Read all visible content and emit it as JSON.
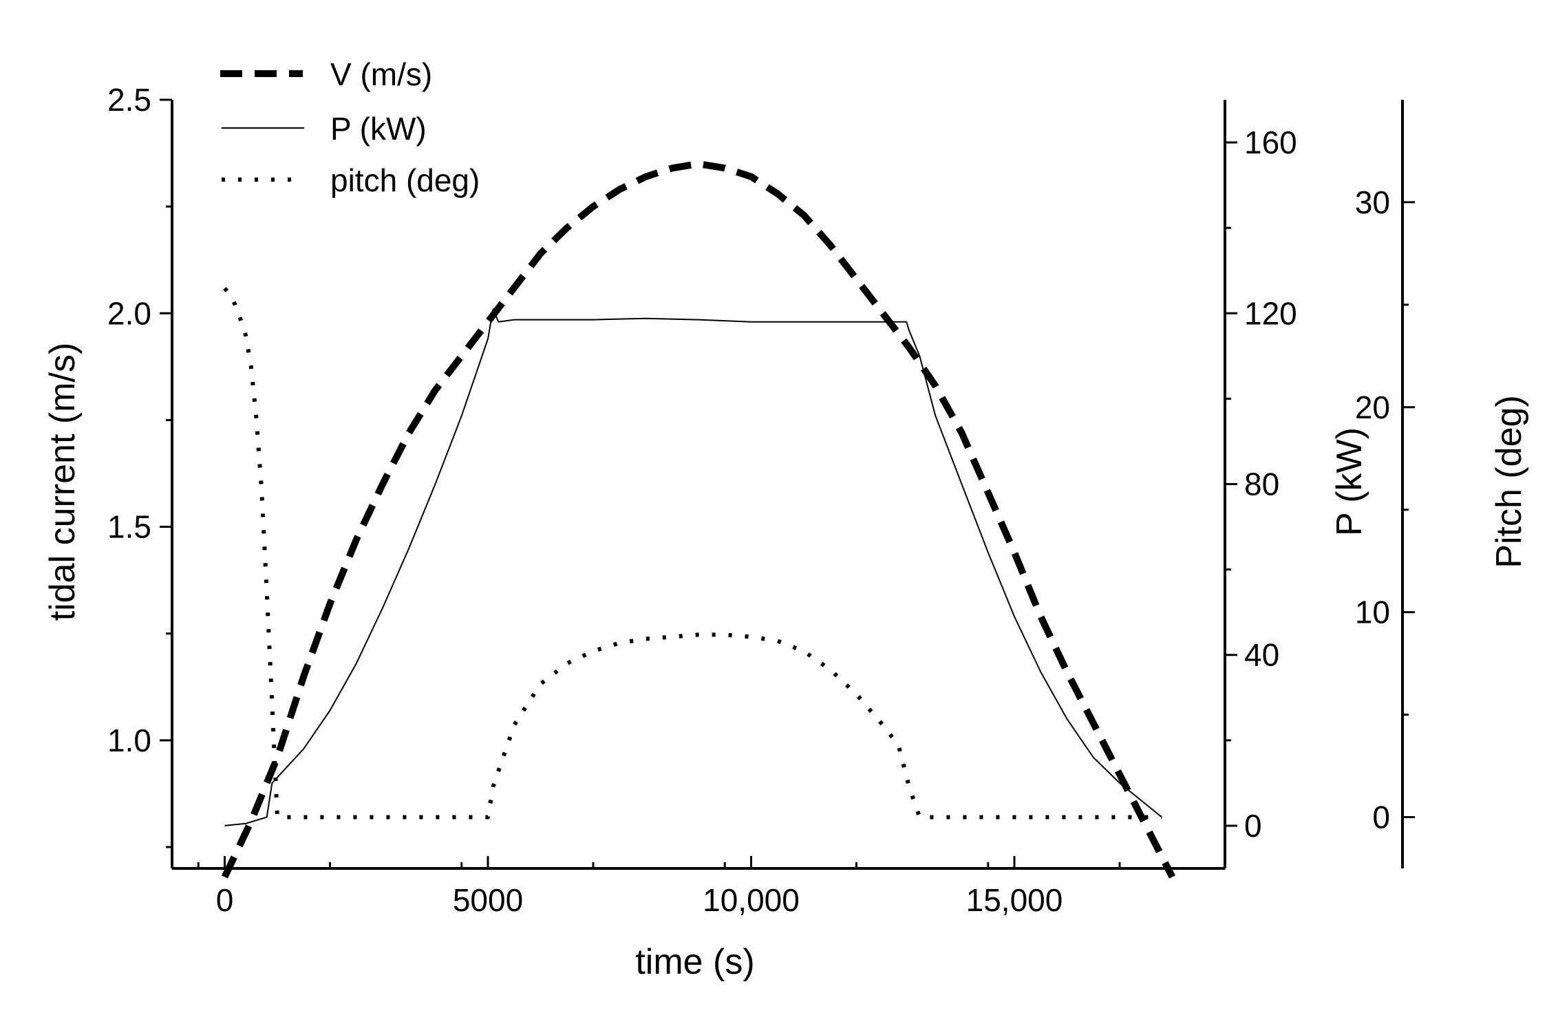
{
  "chart_data": {
    "type": "line",
    "title": "",
    "x_axis": {
      "label": "time (s)",
      "range": [
        -1000,
        19000
      ],
      "ticks": [
        0,
        5000,
        10000,
        15000
      ],
      "tick_labels": [
        "0",
        "5000",
        "10,000",
        "15,000"
      ]
    },
    "y_axis_left": {
      "label": "tidal current (m/s)",
      "range": [
        0.7,
        2.5
      ],
      "ticks": [
        1.0,
        1.5,
        2.0,
        2.5
      ],
      "tick_labels": [
        "1.0",
        "1.5",
        "2.0",
        "2.5"
      ]
    },
    "y_axis_right_power": {
      "label": "P (kW)",
      "range": [
        -10,
        170
      ],
      "ticks": [
        0,
        40,
        80,
        120,
        160
      ],
      "tick_labels": [
        "0",
        "40",
        "80",
        "120",
        "160"
      ]
    },
    "y_axis_right_pitch": {
      "label": "Pitch (deg)",
      "range": [
        -2.5,
        35
      ],
      "ticks": [
        0,
        10,
        20,
        30
      ],
      "tick_labels": [
        "0",
        "10",
        "20",
        "30"
      ]
    },
    "legend": {
      "position": "top-left",
      "entries": [
        "V (m/s)",
        "P (kW)",
        "pitch (deg)"
      ]
    },
    "series": [
      {
        "name": "V (m/s)",
        "axis": "left",
        "style": "dashed",
        "x": [
          0,
          500,
          1000,
          1500,
          2000,
          2500,
          3000,
          3500,
          4000,
          4500,
          5000,
          5500,
          6000,
          6500,
          7000,
          7500,
          8000,
          8500,
          9000,
          9500,
          10000,
          10500,
          11000,
          11500,
          12000,
          12500,
          13000,
          13500,
          14000,
          14500,
          15000,
          15500,
          16000,
          16500,
          17000,
          17500,
          18000
        ],
        "y": [
          0.68,
          0.81,
          0.96,
          1.15,
          1.32,
          1.47,
          1.6,
          1.72,
          1.82,
          1.9,
          1.98,
          2.06,
          2.14,
          2.2,
          2.25,
          2.29,
          2.32,
          2.34,
          2.35,
          2.34,
          2.32,
          2.28,
          2.23,
          2.16,
          2.08,
          2.0,
          1.92,
          1.83,
          1.72,
          1.58,
          1.44,
          1.29,
          1.16,
          1.04,
          0.92,
          0.8,
          0.68
        ]
      },
      {
        "name": "P (kW)",
        "axis": "right-power",
        "style": "solid",
        "x": [
          0,
          400,
          800,
          850,
          900,
          1500,
          2000,
          2500,
          3000,
          3500,
          4000,
          4500,
          5000,
          5100,
          5200,
          5500,
          6000,
          7000,
          8000,
          9000,
          10000,
          11000,
          12000,
          12500,
          12950,
          13000,
          13200,
          13500,
          14000,
          14500,
          15000,
          15500,
          16000,
          16500,
          17000,
          17500,
          17800
        ],
        "y": [
          0,
          0.5,
          2,
          6,
          10,
          18,
          27,
          38,
          51,
          65,
          80,
          96,
          114,
          121,
          118,
          118.5,
          118.5,
          118.5,
          118.8,
          118.5,
          118,
          118,
          118,
          118,
          118,
          116,
          110,
          96,
          80,
          64,
          49,
          36,
          25,
          16,
          10,
          5,
          2
        ]
      },
      {
        "name": "pitch (deg)",
        "axis": "right-pitch",
        "style": "dotted",
        "x": [
          0,
          100,
          200,
          300,
          400,
          500,
          600,
          700,
          800,
          900,
          1000,
          2000,
          3000,
          4000,
          5000,
          5100,
          5500,
          6000,
          6500,
          7000,
          7500,
          8000,
          8500,
          9000,
          9500,
          10000,
          10500,
          11000,
          11500,
          12000,
          12500,
          12800,
          12900,
          13000,
          13200,
          14000,
          15000,
          16000,
          17000,
          17800
        ],
        "y": [
          25.8,
          25.5,
          25,
          24.3,
          23.5,
          22,
          19.5,
          16,
          11,
          5.5,
          0,
          0,
          0,
          0,
          0,
          1.5,
          4.5,
          6.5,
          7.5,
          8.1,
          8.5,
          8.7,
          8.8,
          8.9,
          8.9,
          8.8,
          8.6,
          8.1,
          7.2,
          6.0,
          4.5,
          3.5,
          2.5,
          1.5,
          0,
          0,
          0,
          0,
          0,
          0
        ]
      }
    ]
  }
}
